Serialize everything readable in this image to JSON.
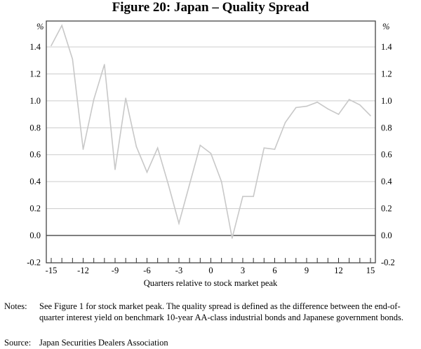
{
  "chart_data": {
    "type": "line",
    "title": "Figure 20: Japan – Quality Spread",
    "xlabel": "Quarters relative to stock market peak",
    "ylabel_left": "%",
    "ylabel_right": "%",
    "xlim": [
      -15,
      15
    ],
    "ylim": [
      -0.2,
      1.6
    ],
    "x_ticks": [
      -15,
      -12,
      -9,
      -6,
      -3,
      0,
      3,
      6,
      9,
      12,
      15
    ],
    "y_ticks": [
      "-0.2",
      "0.0",
      "0.2",
      "0.4",
      "0.6",
      "0.8",
      "1.0",
      "1.2",
      "1.4"
    ],
    "grid": true,
    "series": [
      {
        "name": "Quality spread",
        "color": "#c8c8c8",
        "x": [
          -15,
          -14,
          -13,
          -12,
          -11,
          -10,
          -9,
          -8,
          -7,
          -6,
          -5,
          -4,
          -3,
          -2,
          -1,
          0,
          1,
          2,
          3,
          4,
          5,
          6,
          7,
          8,
          9,
          10,
          11,
          12,
          13,
          14,
          15
        ],
        "values": [
          1.41,
          1.56,
          1.31,
          0.64,
          1.01,
          1.27,
          0.49,
          1.02,
          0.66,
          0.47,
          0.65,
          0.38,
          0.09,
          0.38,
          0.67,
          0.61,
          0.4,
          -0.02,
          0.29,
          0.29,
          0.65,
          0.64,
          0.84,
          0.95,
          0.96,
          0.99,
          0.94,
          0.9,
          1.01,
          0.97,
          0.89
        ]
      }
    ]
  },
  "notes": {
    "notes_label": "Notes:",
    "notes_text": "See Figure 1 for stock market peak. The quality spread is defined as the difference between the end-of-quarter interest yield on benchmark 10-year AA-class industrial bonds and Japanese government bonds.",
    "source_label": "Source:",
    "source_text": "Japan Securities Dealers Association"
  }
}
